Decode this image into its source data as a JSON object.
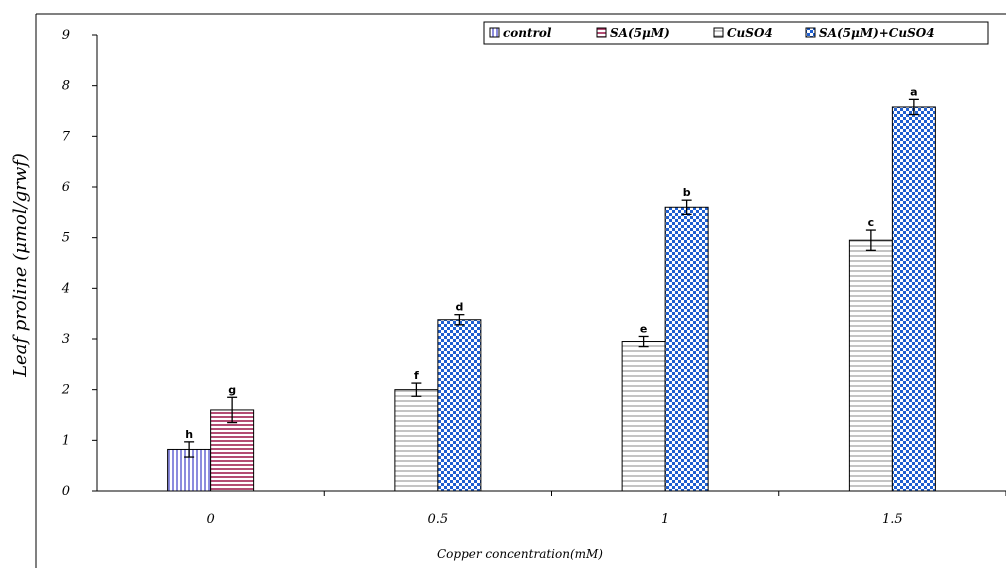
{
  "chart_data": {
    "type": "bar",
    "title": "",
    "xlabel": "Copper concentration(mM)",
    "ylabel": "Leaf proline (μmol/grwf)",
    "ylim": [
      0,
      9
    ],
    "yticks": [
      "0",
      "1",
      "2",
      "3",
      "4",
      "5",
      "6",
      "7",
      "8",
      "9"
    ],
    "categories": [
      "0",
      "0.5",
      "1",
      "1.5"
    ],
    "grid": false,
    "legend_position": "top-right",
    "series": [
      {
        "name": "control",
        "color": "#6f6fd0",
        "pattern": "vertical-lines",
        "values": [
          0.82,
          null,
          null,
          null
        ],
        "errors": [
          0.15,
          null,
          null,
          null
        ],
        "letters": [
          "h",
          null,
          null,
          null
        ]
      },
      {
        "name": "SA(5μM)",
        "color": "#b03060",
        "pattern": "horizontal-lines",
        "values": [
          1.6,
          null,
          null,
          null
        ],
        "errors": [
          0.25,
          null,
          null,
          null
        ],
        "letters": [
          "g",
          null,
          null,
          null
        ]
      },
      {
        "name": "CuSO4",
        "color": "#8a8a8a",
        "pattern": "horizontal-lines",
        "values": [
          null,
          2.0,
          2.95,
          4.95
        ],
        "errors": [
          null,
          0.13,
          0.1,
          0.2
        ],
        "letters": [
          null,
          "f",
          "e",
          "c"
        ]
      },
      {
        "name": "SA(5μM)+CuSO4",
        "color": "#1f5fd0",
        "pattern": "checker",
        "values": [
          null,
          3.38,
          5.6,
          7.58
        ],
        "errors": [
          null,
          0.1,
          0.14,
          0.15
        ],
        "letters": [
          null,
          "d",
          "b",
          "a"
        ]
      }
    ]
  }
}
